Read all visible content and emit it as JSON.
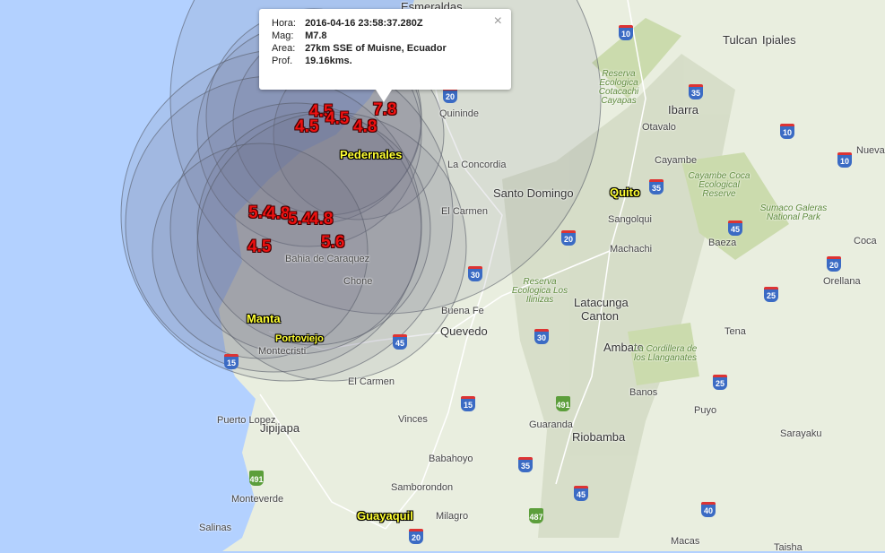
{
  "popup": {
    "hora_label": "Hora:",
    "hora": "2016-04-16 23:58:37.280Z",
    "mag_label": "Mag:",
    "mag": "M7.8",
    "area_label": "Area:",
    "area": "27km SSE of Muisne, Ecuador",
    "prof_label": "Prof.",
    "prof": "19.16kms.",
    "close": "×"
  },
  "colors": {
    "ocean": "#b3d1ff",
    "land": "#e9eedf",
    "circle": "#6b6f80",
    "magnitude": "#ee1111",
    "highlight_city": "#ffff33"
  },
  "earthquakes": [
    {
      "mag": "7.8"
    },
    {
      "mag": "4.5"
    },
    {
      "mag": "4.5"
    },
    {
      "mag": "4.5"
    },
    {
      "mag": "4.8"
    },
    {
      "mag": "5.4"
    },
    {
      "mag": "4.8"
    },
    {
      "mag": "5.4"
    },
    {
      "mag": "4.8"
    },
    {
      "mag": "4.5"
    },
    {
      "mag": "5.6"
    }
  ],
  "highlighted_cities": [
    "Pedernales",
    "Quito",
    "Manta",
    "Portoviejo",
    "Guayaquil"
  ],
  "cities": [
    "Esmeraldas",
    "Tulcan",
    "Ipiales",
    "Quininde",
    "Ibarra",
    "Otavalo",
    "Cayambe",
    "La Concordia",
    "Santo Domingo",
    "El Carmen",
    "Sangolqui",
    "Machachi",
    "Baeza",
    "Coca",
    "Nueva",
    "Orellana",
    "Bahia de Caraquez",
    "Chone",
    "Buena Fe",
    "Latacunga",
    "Canton",
    "Quevedo",
    "Tena",
    "Montecristi",
    "Jipijapa",
    "El Carmen",
    "Ambato",
    "Banos",
    "Puyo",
    "Vinces",
    "Guaranda",
    "Riobamba",
    "Babahoyo",
    "Puerto Lopez",
    "Samborondon",
    "Milagro",
    "Monteverde",
    "Salinas",
    "Macas",
    "Sarayaku",
    "Taisha"
  ],
  "parks": [
    "Reserva Ecologica Cotacachi Cayapas",
    "Cayambe Coca Ecological Reserve",
    "Sumaco Galeras National Park",
    "Reserva Ecologica Los Ilinizas",
    "La Cordillera de los Llanganates"
  ],
  "shields": [
    "10",
    "35",
    "10",
    "10",
    "20",
    "35",
    "45",
    "20",
    "20",
    "25",
    "30",
    "30",
    "45",
    "25",
    "15",
    "15",
    "491",
    "491",
    "35",
    "487",
    "45",
    "40",
    "20"
  ]
}
